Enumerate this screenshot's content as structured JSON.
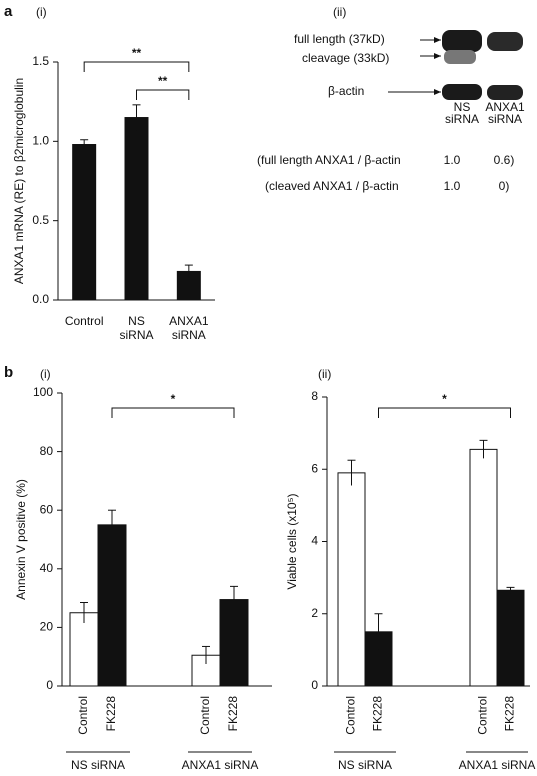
{
  "chart_data": [
    {
      "type": "bar",
      "panel": "a",
      "subtitle": "(i)",
      "ylabel": "ANXA1 mRNA (RE) to β2microglobulin",
      "categories": [
        [
          "Control"
        ],
        [
          "NS",
          "siRNA"
        ],
        [
          "ANXA1",
          "siRNA"
        ]
      ],
      "values": [
        0.98,
        1.15,
        0.18
      ],
      "errors": [
        0.03,
        0.08,
        0.04
      ],
      "color": "#111111",
      "ylim": [
        0,
        1.5
      ],
      "yticks": [
        {
          "value": 0,
          "label": "0.0"
        },
        0.5,
        {
          "value": 1,
          "label": "1.0"
        },
        1.5
      ],
      "annotations": [
        {
          "label": "**",
          "from": [
            0
          ],
          "to": [
            2
          ]
        },
        {
          "label": "**",
          "from": [
            1
          ],
          "to": [
            2
          ]
        }
      ]
    },
    {
      "type": "grouped_bar",
      "panel": "b",
      "subtitle": "(i)",
      "ylabel": "Annexin V positive  (%)",
      "categories": [
        "NS siRNA",
        "ANXA1 siRNA"
      ],
      "series": [
        {
          "name": "Control",
          "color": "#ffffff",
          "values": [
            25,
            10.5
          ],
          "errors": [
            3.5,
            3
          ]
        },
        {
          "name": "FK228",
          "color": "#111111",
          "values": [
            55,
            29.5
          ],
          "errors": [
            5,
            4.5
          ]
        }
      ],
      "ylim": [
        0,
        100
      ],
      "yticks": [
        0,
        20,
        40,
        60,
        80,
        100
      ],
      "annotations": [
        {
          "label": "*",
          "from": [
            0,
            1
          ],
          "to": [
            1,
            1
          ]
        }
      ]
    },
    {
      "type": "grouped_bar",
      "subtitle": "(ii)",
      "ylabel": "Viable cells  (x10⁵)",
      "categories": [
        "NS siRNA",
        "ANXA1 siRNA"
      ],
      "series": [
        {
          "name": "Control",
          "color": "#ffffff",
          "values": [
            5.9,
            6.55
          ],
          "errors": [
            0.35,
            0.25
          ]
        },
        {
          "name": "FK228",
          "color": "#111111",
          "values": [
            1.5,
            2.65
          ],
          "errors": [
            0.5,
            0.08
          ]
        }
      ],
      "ylim": [
        0,
        8
      ],
      "yticks": [
        0,
        2,
        4,
        6,
        8
      ],
      "annotations": [
        {
          "label": "*",
          "from": [
            0,
            1
          ],
          "to": [
            1,
            1
          ]
        }
      ]
    }
  ],
  "blot": {
    "subtitle": "(ii)",
    "band_full": "full length (37kD)",
    "band_cleavage": "cleavage (33kD)",
    "band_actin": "β-actin",
    "lanes": [
      [
        "NS",
        "siRNA"
      ],
      [
        "ANXA1",
        "siRNA"
      ]
    ],
    "rows": [
      {
        "label": "(full length ANXA1 / β-actin",
        "values": [
          "1.0",
          "0.6)"
        ]
      },
      {
        "label": "(cleaved ANXA1 / β-actin",
        "values": [
          "1.0",
          "0)"
        ]
      }
    ]
  }
}
